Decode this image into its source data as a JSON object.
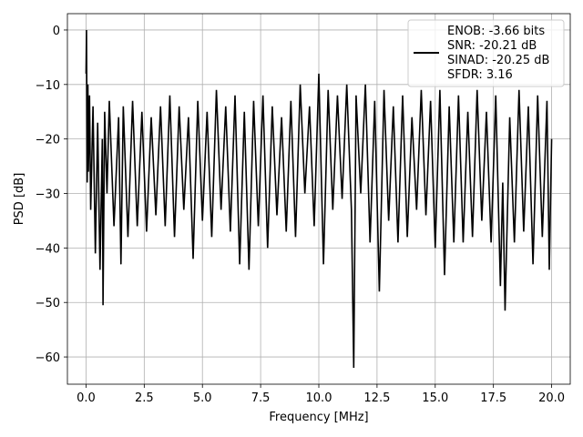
{
  "chart_data": {
    "type": "line",
    "xlabel": "Frequency [MHz]",
    "ylabel": "PSD [dB]",
    "xlim": [
      -0.8,
      20.8
    ],
    "ylim": [
      -65,
      3
    ],
    "xticks": [
      0.0,
      2.5,
      5.0,
      7.5,
      10.0,
      12.5,
      15.0,
      17.5,
      20.0
    ],
    "xtick_labels": [
      "0.0",
      "2.5",
      "5.0",
      "7.5",
      "10.0",
      "12.5",
      "15.0",
      "17.5",
      "20.0"
    ],
    "yticks": [
      0,
      -10,
      -20,
      -30,
      -40,
      -50,
      -60
    ],
    "ytick_labels": [
      "0",
      "−10",
      "−20",
      "−30",
      "−40",
      "−50",
      "−60"
    ],
    "grid": true,
    "legend_position": "top-right",
    "line_color": "#000000",
    "legend": {
      "lines": [
        "ENOB: -3.66 bits",
        "SNR: -20.21 dB",
        "SINAD: -20.25 dB",
        "SFDR: 3.16"
      ]
    },
    "series": [
      {
        "x": [
          0.0,
          0.02,
          0.05,
          0.08,
          0.1,
          0.15,
          0.2,
          0.3,
          0.4,
          0.5,
          0.6,
          0.7,
          0.73,
          0.8,
          0.9,
          1.0,
          1.2,
          1.4,
          1.5,
          1.6,
          1.8,
          2.0,
          2.2,
          2.4,
          2.6,
          2.8,
          3.0,
          3.2,
          3.4,
          3.6,
          3.8,
          4.0,
          4.2,
          4.4,
          4.6,
          4.8,
          5.0,
          5.2,
          5.4,
          5.6,
          5.8,
          6.0,
          6.2,
          6.4,
          6.6,
          6.8,
          7.0,
          7.2,
          7.4,
          7.6,
          7.8,
          8.0,
          8.2,
          8.4,
          8.6,
          8.8,
          9.0,
          9.2,
          9.4,
          9.6,
          9.8,
          10.0,
          10.2,
          10.4,
          10.6,
          10.8,
          11.0,
          11.2,
          11.4,
          11.5,
          11.6,
          11.8,
          12.0,
          12.2,
          12.4,
          12.6,
          12.8,
          13.0,
          13.2,
          13.4,
          13.6,
          13.8,
          14.0,
          14.2,
          14.4,
          14.6,
          14.8,
          15.0,
          15.2,
          15.4,
          15.6,
          15.8,
          16.0,
          16.2,
          16.4,
          16.6,
          16.8,
          17.0,
          17.2,
          17.4,
          17.6,
          17.8,
          17.9,
          18.0,
          18.2,
          18.4,
          18.6,
          18.8,
          19.0,
          19.2,
          19.4,
          19.6,
          19.8,
          19.9,
          20.0
        ],
        "y": [
          -8,
          0,
          -28,
          -10,
          -26,
          -12,
          -33,
          -14,
          -41,
          -17,
          -44,
          -20,
          -50.5,
          -15,
          -30,
          -13,
          -36,
          -16,
          -43,
          -14,
          -38,
          -13,
          -36,
          -15,
          -37,
          -16,
          -34,
          -14,
          -36,
          -12,
          -38,
          -14,
          -33,
          -16,
          -42,
          -13,
          -35,
          -15,
          -38,
          -11,
          -33,
          -14,
          -37,
          -12,
          -43,
          -15,
          -44,
          -13,
          -36,
          -12,
          -40,
          -14,
          -34,
          -16,
          -37,
          -13,
          -38,
          -10,
          -30,
          -14,
          -36,
          -8,
          -43,
          -11,
          -33,
          -12,
          -31,
          -10,
          -33,
          -62,
          -12,
          -30,
          -10,
          -39,
          -13,
          -48,
          -11,
          -35,
          -14,
          -39,
          -12,
          -38,
          -16,
          -33,
          -11,
          -34,
          -13,
          -40,
          -11,
          -45,
          -14,
          -39,
          -12,
          -39,
          -15,
          -38,
          -11,
          -35,
          -15,
          -39,
          -12,
          -47,
          -28,
          -51.5,
          -16,
          -39,
          -11,
          -37,
          -14,
          -43,
          -12,
          -38,
          -13,
          -44,
          -20
        ]
      }
    ]
  }
}
